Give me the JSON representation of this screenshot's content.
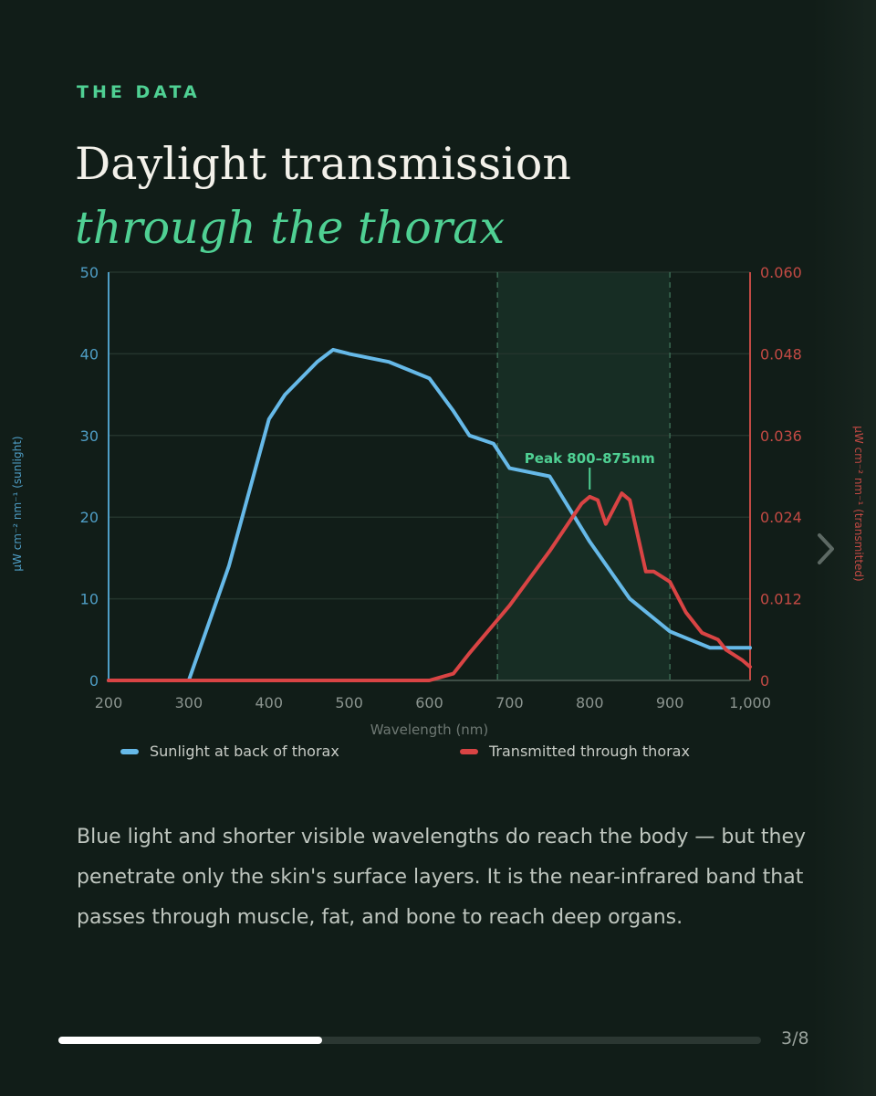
{
  "header": {
    "eyebrow": "THE DATA",
    "title_line1": "Daylight transmission",
    "title_line2": "through the thorax"
  },
  "chart_data": {
    "type": "line",
    "title": "",
    "xlabel": "Wavelength (nm)",
    "ylabel_left": "μW cm⁻² nm⁻¹ (sunlight)",
    "ylabel_right": "μW cm⁻² nm⁻¹ (transmitted)",
    "xlim": [
      200,
      1000
    ],
    "ylim_left": [
      0,
      50
    ],
    "ylim_right": [
      0,
      0.06
    ],
    "x_ticks": [
      "200",
      "300",
      "400",
      "500",
      "600",
      "700",
      "800",
      "900",
      "1,000"
    ],
    "y_ticks_left": [
      "0",
      "10",
      "20",
      "30",
      "40",
      "50"
    ],
    "y_ticks_right": [
      "0",
      "0.012",
      "0.024",
      "0.036",
      "0.048",
      "0.060"
    ],
    "grid": true,
    "highlight_band": {
      "x": [
        685,
        900
      ],
      "label": "Peak 800–875nm",
      "label_x": 800
    },
    "legend_position": "bottom",
    "series": [
      {
        "name": "Sunlight at back of thorax",
        "axis": "left",
        "color": "#66b9e8",
        "x": [
          200,
          300,
          350,
          400,
          420,
          440,
          460,
          480,
          500,
          550,
          600,
          630,
          650,
          680,
          700,
          750,
          800,
          850,
          900,
          950,
          1000
        ],
        "y": [
          0,
          0,
          14,
          32,
          35,
          37,
          39,
          40.5,
          40,
          39,
          37,
          33,
          30,
          29,
          26,
          25,
          17,
          10,
          6,
          4,
          4
        ]
      },
      {
        "name": "Transmitted through thorax",
        "axis": "right",
        "color": "#d94444",
        "x": [
          200,
          600,
          630,
          650,
          700,
          750,
          790,
          800,
          810,
          820,
          840,
          850,
          870,
          880,
          900,
          920,
          940,
          960,
          970,
          990,
          1000
        ],
        "y": [
          0,
          0,
          0.001,
          0.004,
          0.011,
          0.019,
          0.026,
          0.027,
          0.0265,
          0.023,
          0.0275,
          0.0265,
          0.016,
          0.016,
          0.0145,
          0.01,
          0.007,
          0.006,
          0.0045,
          0.003,
          0.002
        ]
      }
    ]
  },
  "body_text": "Blue light and shorter visible wavelengths do reach the body — but they penetrate only the skin's surface layers. It is the near-infrared band that passes through muscle, fat, and bone to reach deep organs.",
  "pagination": {
    "current": 3,
    "total": 8,
    "label": "3/8",
    "progress": 0.375
  },
  "colors": {
    "accent": "#4fd093",
    "sunlight": "#66b9e8",
    "transmitted": "#d94444",
    "background": "#111d18"
  },
  "icons": {
    "next": "chevron-right-icon"
  }
}
